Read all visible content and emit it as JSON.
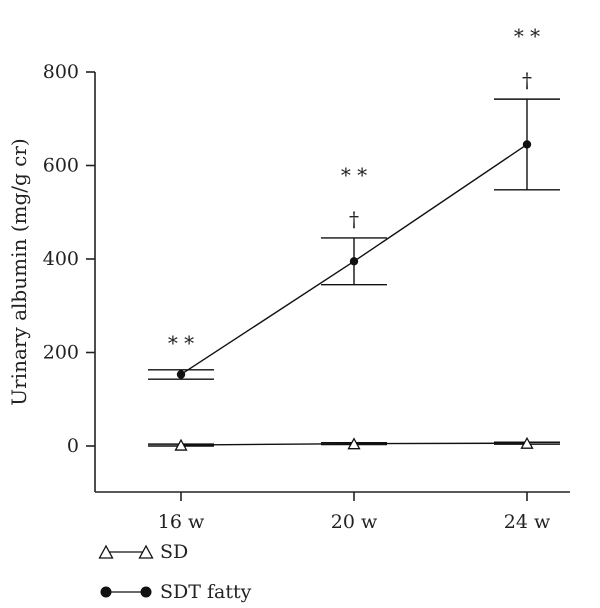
{
  "chart_data": {
    "type": "line",
    "title": "",
    "xlabel": "",
    "ylabel": "Urinary albumin (mg/g cr)",
    "categories": [
      "16 w",
      "20 w",
      "24 w"
    ],
    "ylim": [
      -100,
      800
    ],
    "yticks": [
      0,
      200,
      400,
      600,
      800
    ],
    "grid": false,
    "legend_position": "bottom-left",
    "series": [
      {
        "name": "SD",
        "marker": "open-triangle",
        "values": [
          2,
          5,
          6
        ],
        "errors": [
          2,
          2,
          2
        ]
      },
      {
        "name": "SDT fatty",
        "marker": "filled-circle",
        "values": [
          153,
          395,
          645
        ],
        "errors": [
          10,
          50,
          97
        ]
      }
    ],
    "annotations": [
      {
        "category": "16 w",
        "lines": [
          "*   *"
        ]
      },
      {
        "category": "20 w",
        "lines": [
          "*   *",
          "†"
        ]
      },
      {
        "category": "24 w",
        "lines": [
          "*   *",
          "†"
        ]
      }
    ]
  }
}
